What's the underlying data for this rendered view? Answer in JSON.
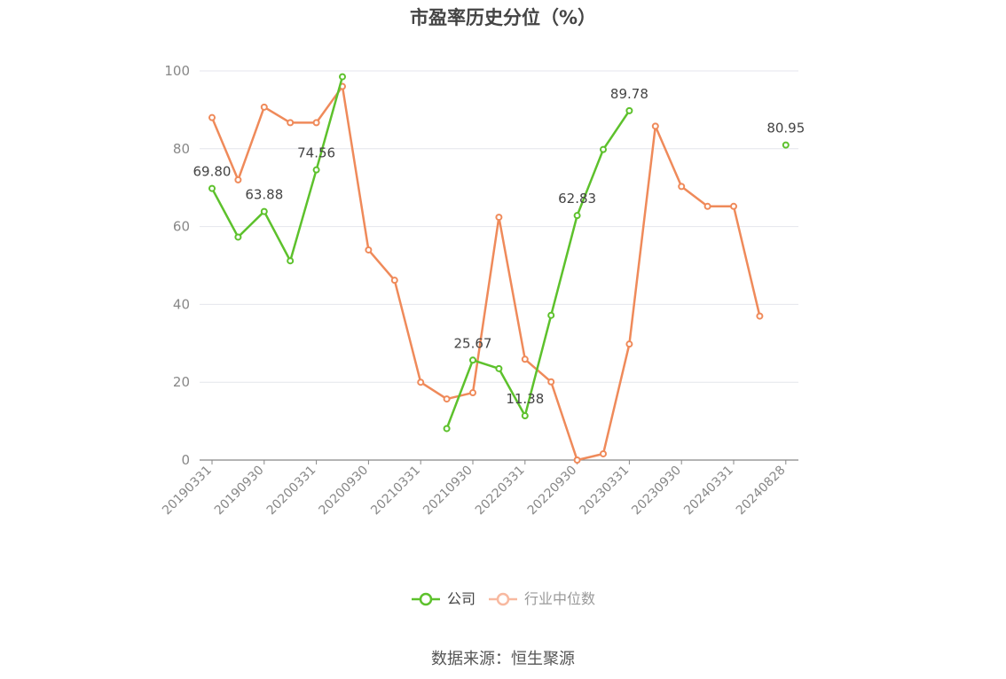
{
  "title": "市盈率历史分位（%）",
  "source": "数据来源：恒生聚源",
  "colors": {
    "company": "#5dc12c",
    "industry": "#ef8a5a",
    "industry_legend": "#f8b9a0"
  },
  "chart_data": {
    "type": "line",
    "title": "市盈率历史分位（%）",
    "ylim": [
      0,
      100
    ],
    "yticks": [
      0,
      20,
      40,
      60,
      80,
      100
    ],
    "grid": true,
    "legend_position": "bottom",
    "x": [
      "20190331",
      "20190630",
      "20190930",
      "20191231",
      "20200331",
      "20200630",
      "20200930",
      "20201231",
      "20210331",
      "20210630",
      "20210930",
      "20211231",
      "20220331",
      "20220630",
      "20220930",
      "20221231",
      "20230331",
      "20230630",
      "20230930",
      "20231231",
      "20240331",
      "20240630",
      "20240828"
    ],
    "xtick_labels": [
      "20190331",
      "20190930",
      "20200331",
      "20200930",
      "20210331",
      "20210930",
      "20220331",
      "20220930",
      "20230331",
      "20230930",
      "20240331",
      "20240828"
    ],
    "series": [
      {
        "name": "公司",
        "values": [
          69.8,
          57.3,
          63.88,
          51.2,
          74.56,
          98.5,
          null,
          null,
          null,
          8.1,
          25.67,
          23.5,
          11.38,
          37.2,
          62.83,
          79.8,
          89.78,
          null,
          null,
          null,
          null,
          null,
          80.95
        ],
        "labels": {
          "0": "69.80",
          "2": "63.88",
          "4": "74.56",
          "10": "25.67",
          "12": "11.38",
          "14": "62.83",
          "16": "89.78",
          "22": "80.95"
        }
      },
      {
        "name": "行业中位数",
        "values": [
          88.0,
          72.0,
          90.7,
          86.7,
          86.7,
          96.0,
          54.0,
          46.2,
          20.0,
          15.7,
          17.3,
          62.4,
          25.9,
          20.1,
          0.0,
          1.6,
          29.8,
          85.8,
          70.3,
          65.2,
          65.2,
          37.0,
          null
        ]
      }
    ]
  }
}
